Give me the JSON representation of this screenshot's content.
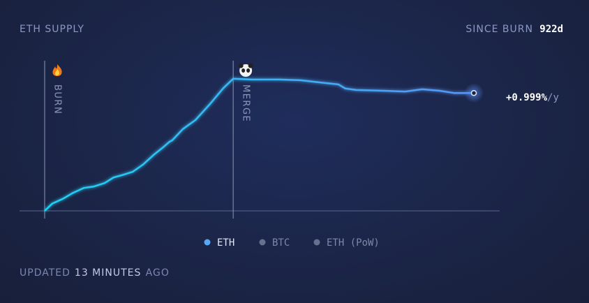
{
  "header": {
    "title": "ETH SUPPLY",
    "since_label": "SINCE BURN",
    "since_value": "922d"
  },
  "chart_data": {
    "type": "line",
    "x": [
      0,
      16,
      39,
      61,
      84,
      106,
      129,
      148,
      166,
      189,
      211,
      234,
      256,
      268,
      274,
      297,
      324,
      354,
      384,
      405,
      444,
      504,
      549,
      594,
      631,
      646,
      669,
      729,
      774,
      811,
      849,
      879,
      922
    ],
    "series": [
      {
        "name": "ETH",
        "color": "#5ec8f8",
        "values": [
          117.0,
          117.19,
          117.32,
          117.48,
          117.61,
          117.65,
          117.74,
          117.89,
          117.95,
          118.04,
          118.23,
          118.49,
          118.71,
          118.84,
          118.88,
          119.18,
          119.42,
          119.83,
          120.27,
          120.52,
          120.5,
          120.5,
          120.48,
          120.42,
          120.37,
          120.26,
          120.22,
          120.2,
          120.18,
          120.24,
          120.2,
          120.14,
          120.14
        ]
      }
    ],
    "xlim": [
      0,
      922
    ],
    "ylim": [
      117,
      121
    ],
    "markers": [
      {
        "label": "BURN",
        "x": 0
      },
      {
        "label": "MERGE",
        "x": 405
      }
    ],
    "end_label": {
      "value": "+0.999%",
      "unit": "/y"
    },
    "legend_items": [
      {
        "name": "ETH",
        "active": true
      },
      {
        "name": "BTC",
        "active": false
      },
      {
        "name": "ETH (PoW)",
        "active": false
      }
    ]
  },
  "footer": {
    "prefix": "UPDATED",
    "age": "13 MINUTES",
    "suffix": "AGO"
  }
}
